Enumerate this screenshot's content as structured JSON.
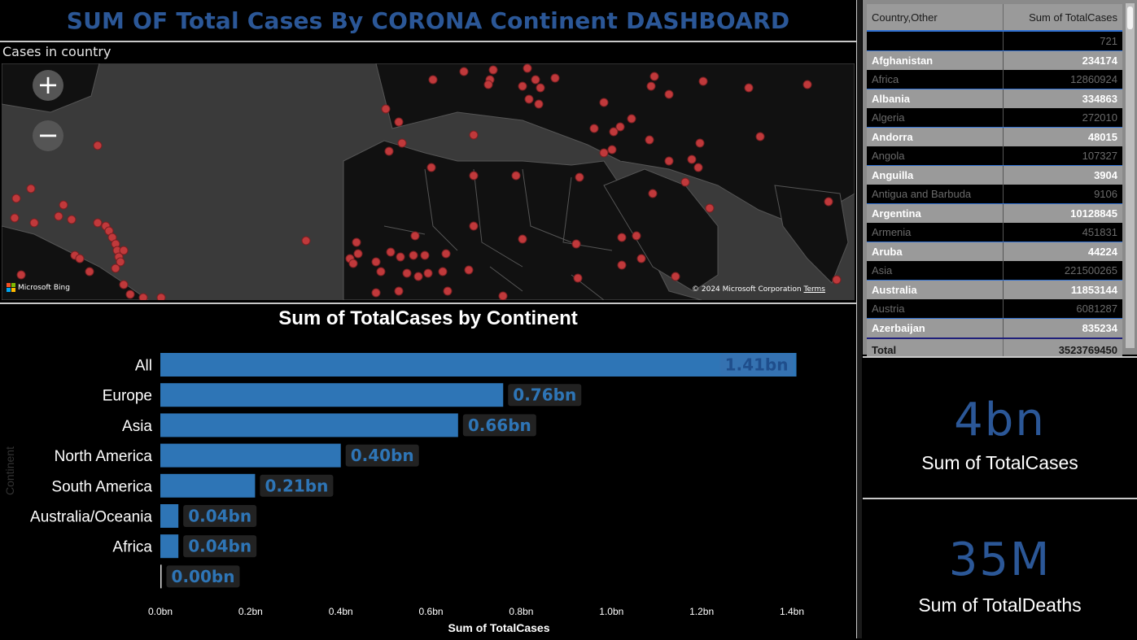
{
  "dashboard": {
    "title": "SUM OF Total Cases By CORONA Continent DASHBOARD"
  },
  "map": {
    "caption": "Cases in country",
    "zoom_in": "+",
    "zoom_out": "−",
    "provider": "Microsoft Bing",
    "copyright": "© 2024 Microsoft Corporation",
    "terms": "Terms",
    "marker_color": "#c0393b"
  },
  "chart_data": {
    "type": "bar",
    "title": "Sum of TotalCases by Continent",
    "xlabel": "Sum of TotalCases",
    "ylabel": "Continent",
    "categories": [
      "All",
      "Europe",
      "Asia",
      "North America",
      "South America",
      "Australia/Oceania",
      "Africa",
      ""
    ],
    "values": [
      1.41,
      0.76,
      0.66,
      0.4,
      0.21,
      0.04,
      0.04,
      0.0
    ],
    "data_labels": [
      "1.41bn",
      "0.76bn",
      "0.66bn",
      "0.40bn",
      "0.21bn",
      "0.04bn",
      "0.04bn",
      "0.00bn"
    ],
    "xticks": [
      "0.0bn",
      "0.2bn",
      "0.4bn",
      "0.6bn",
      "0.8bn",
      "1.0bn",
      "1.2bn",
      "1.4bn"
    ],
    "xlim": [
      0,
      1.4
    ],
    "grid": false,
    "bar_color": "#2e75b6",
    "label_color": "#2e75b6"
  },
  "table": {
    "headers": [
      "Country,Other",
      "Sum of TotalCases"
    ],
    "rows": [
      {
        "name": "",
        "value": "721",
        "style": "dark"
      },
      {
        "name": "Afghanistan",
        "value": "234174",
        "style": "light"
      },
      {
        "name": "Africa",
        "value": "12860924",
        "style": "dark"
      },
      {
        "name": "Albania",
        "value": "334863",
        "style": "light"
      },
      {
        "name": "Algeria",
        "value": "272010",
        "style": "dark"
      },
      {
        "name": "Andorra",
        "value": "48015",
        "style": "light"
      },
      {
        "name": "Angola",
        "value": "107327",
        "style": "dark"
      },
      {
        "name": "Anguilla",
        "value": "3904",
        "style": "light"
      },
      {
        "name": "Antigua and Barbuda",
        "value": "9106",
        "style": "dark"
      },
      {
        "name": "Argentina",
        "value": "10128845",
        "style": "light"
      },
      {
        "name": "Armenia",
        "value": "451831",
        "style": "dark"
      },
      {
        "name": "Aruba",
        "value": "44224",
        "style": "light"
      },
      {
        "name": "Asia",
        "value": "221500265",
        "style": "dark"
      },
      {
        "name": "Australia",
        "value": "11853144",
        "style": "light"
      },
      {
        "name": "Austria",
        "value": "6081287",
        "style": "dark"
      },
      {
        "name": "Azerbaijan",
        "value": "835234",
        "style": "light"
      }
    ],
    "total_label": "Total",
    "total_value": "3523769450"
  },
  "kpis": {
    "cases": {
      "value": "4bn",
      "label": "Sum of TotalCases"
    },
    "deaths": {
      "value": "35M",
      "label": "Sum of TotalDeaths"
    }
  }
}
